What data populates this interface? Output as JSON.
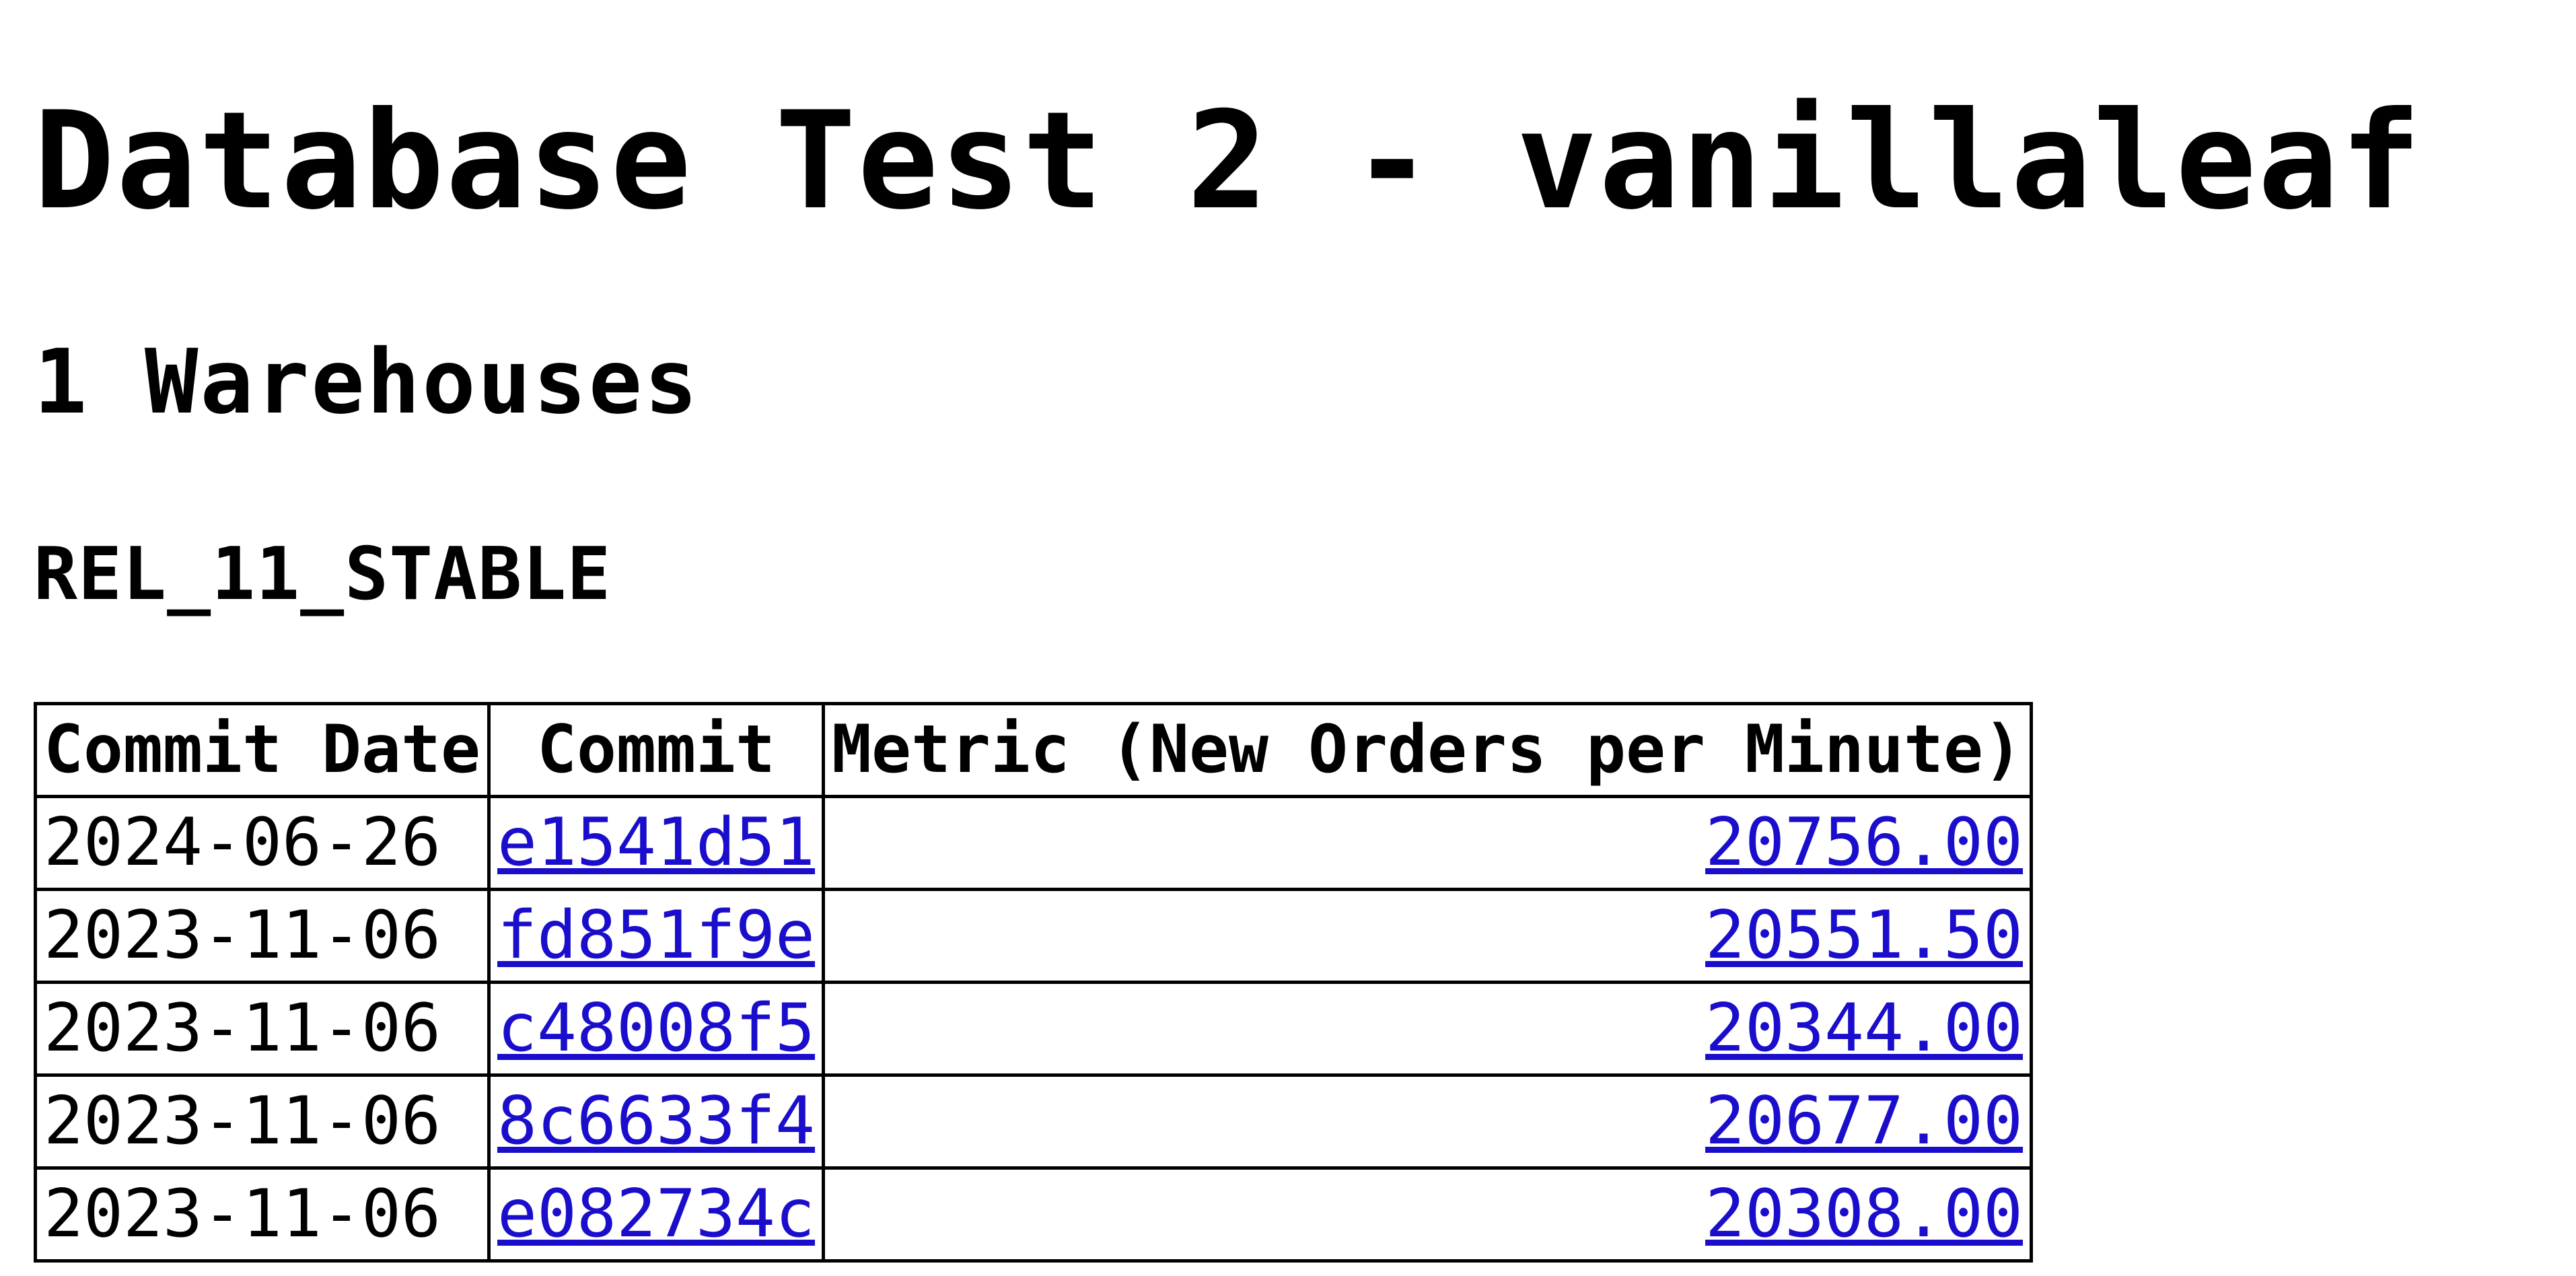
{
  "page": {
    "title": "Database Test 2 - vanillaleaf",
    "subtitle": "1 Warehouses",
    "branch": "REL_11_STABLE"
  },
  "table": {
    "headers": {
      "commit_date": "Commit Date",
      "commit": "Commit",
      "metric": "Metric (New Orders per Minute)"
    },
    "rows": [
      {
        "date": "2024-06-26",
        "commit": "e1541d51",
        "metric": "20756.00"
      },
      {
        "date": "2023-11-06",
        "commit": "fd851f9e",
        "metric": "20551.50"
      },
      {
        "date": "2023-11-06",
        "commit": "c48008f5",
        "metric": "20344.00"
      },
      {
        "date": "2023-11-06",
        "commit": "8c6633f4",
        "metric": "20677.00"
      },
      {
        "date": "2023-11-06",
        "commit": "e082734c",
        "metric": "20308.00"
      }
    ]
  },
  "colors": {
    "link": "#1a0dcc",
    "text": "#000000",
    "background": "#ffffff"
  }
}
